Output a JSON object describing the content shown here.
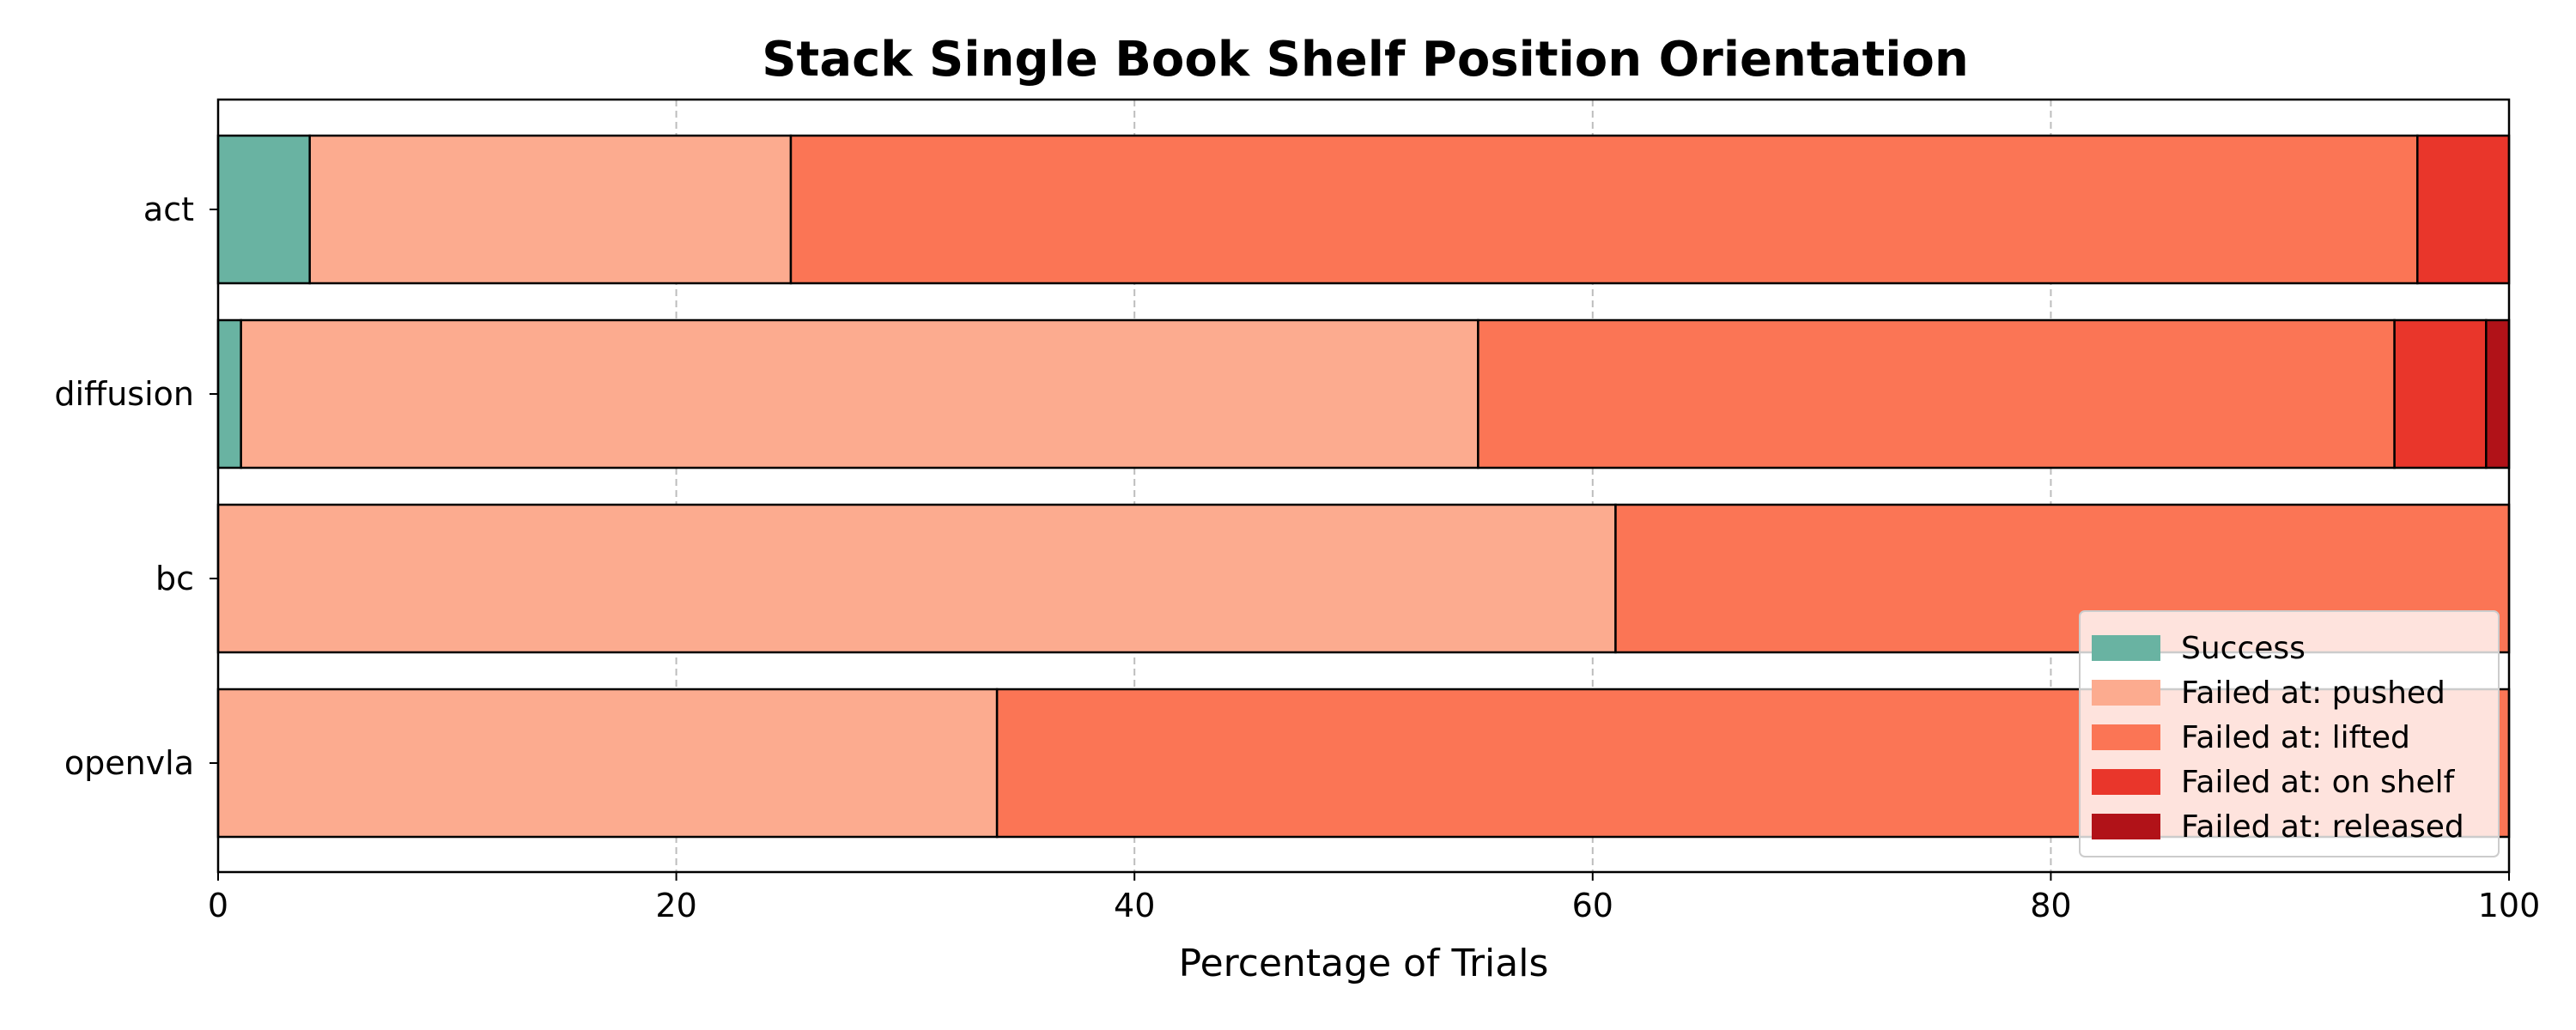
{
  "chart_data": {
    "type": "bar",
    "orientation": "horizontal",
    "stacked": true,
    "title": "Stack Single Book Shelf Position Orientation",
    "xlabel": "Percentage of Trials",
    "ylabel": "",
    "xlim": [
      0,
      100
    ],
    "xticks": [
      0,
      20,
      40,
      60,
      80,
      100
    ],
    "x_grid": true,
    "legend_position": "lower-right",
    "categories": [
      "act",
      "diffusion",
      "bc",
      "openvla"
    ],
    "series": [
      {
        "name": "Success",
        "color": "#69b3a2",
        "values": [
          4,
          1,
          0,
          0
        ]
      },
      {
        "name": "Failed at: pushed",
        "color": "#fcab8f",
        "values": [
          21,
          54,
          61,
          34
        ]
      },
      {
        "name": "Failed at: lifted",
        "color": "#fb7555",
        "values": [
          71,
          40,
          39,
          66
        ]
      },
      {
        "name": "Failed at: on shelf",
        "color": "#e9362b",
        "values": [
          4,
          4,
          0,
          0
        ]
      },
      {
        "name": "Failed at: released",
        "color": "#b11218",
        "values": [
          0,
          1,
          0,
          0
        ]
      }
    ]
  }
}
